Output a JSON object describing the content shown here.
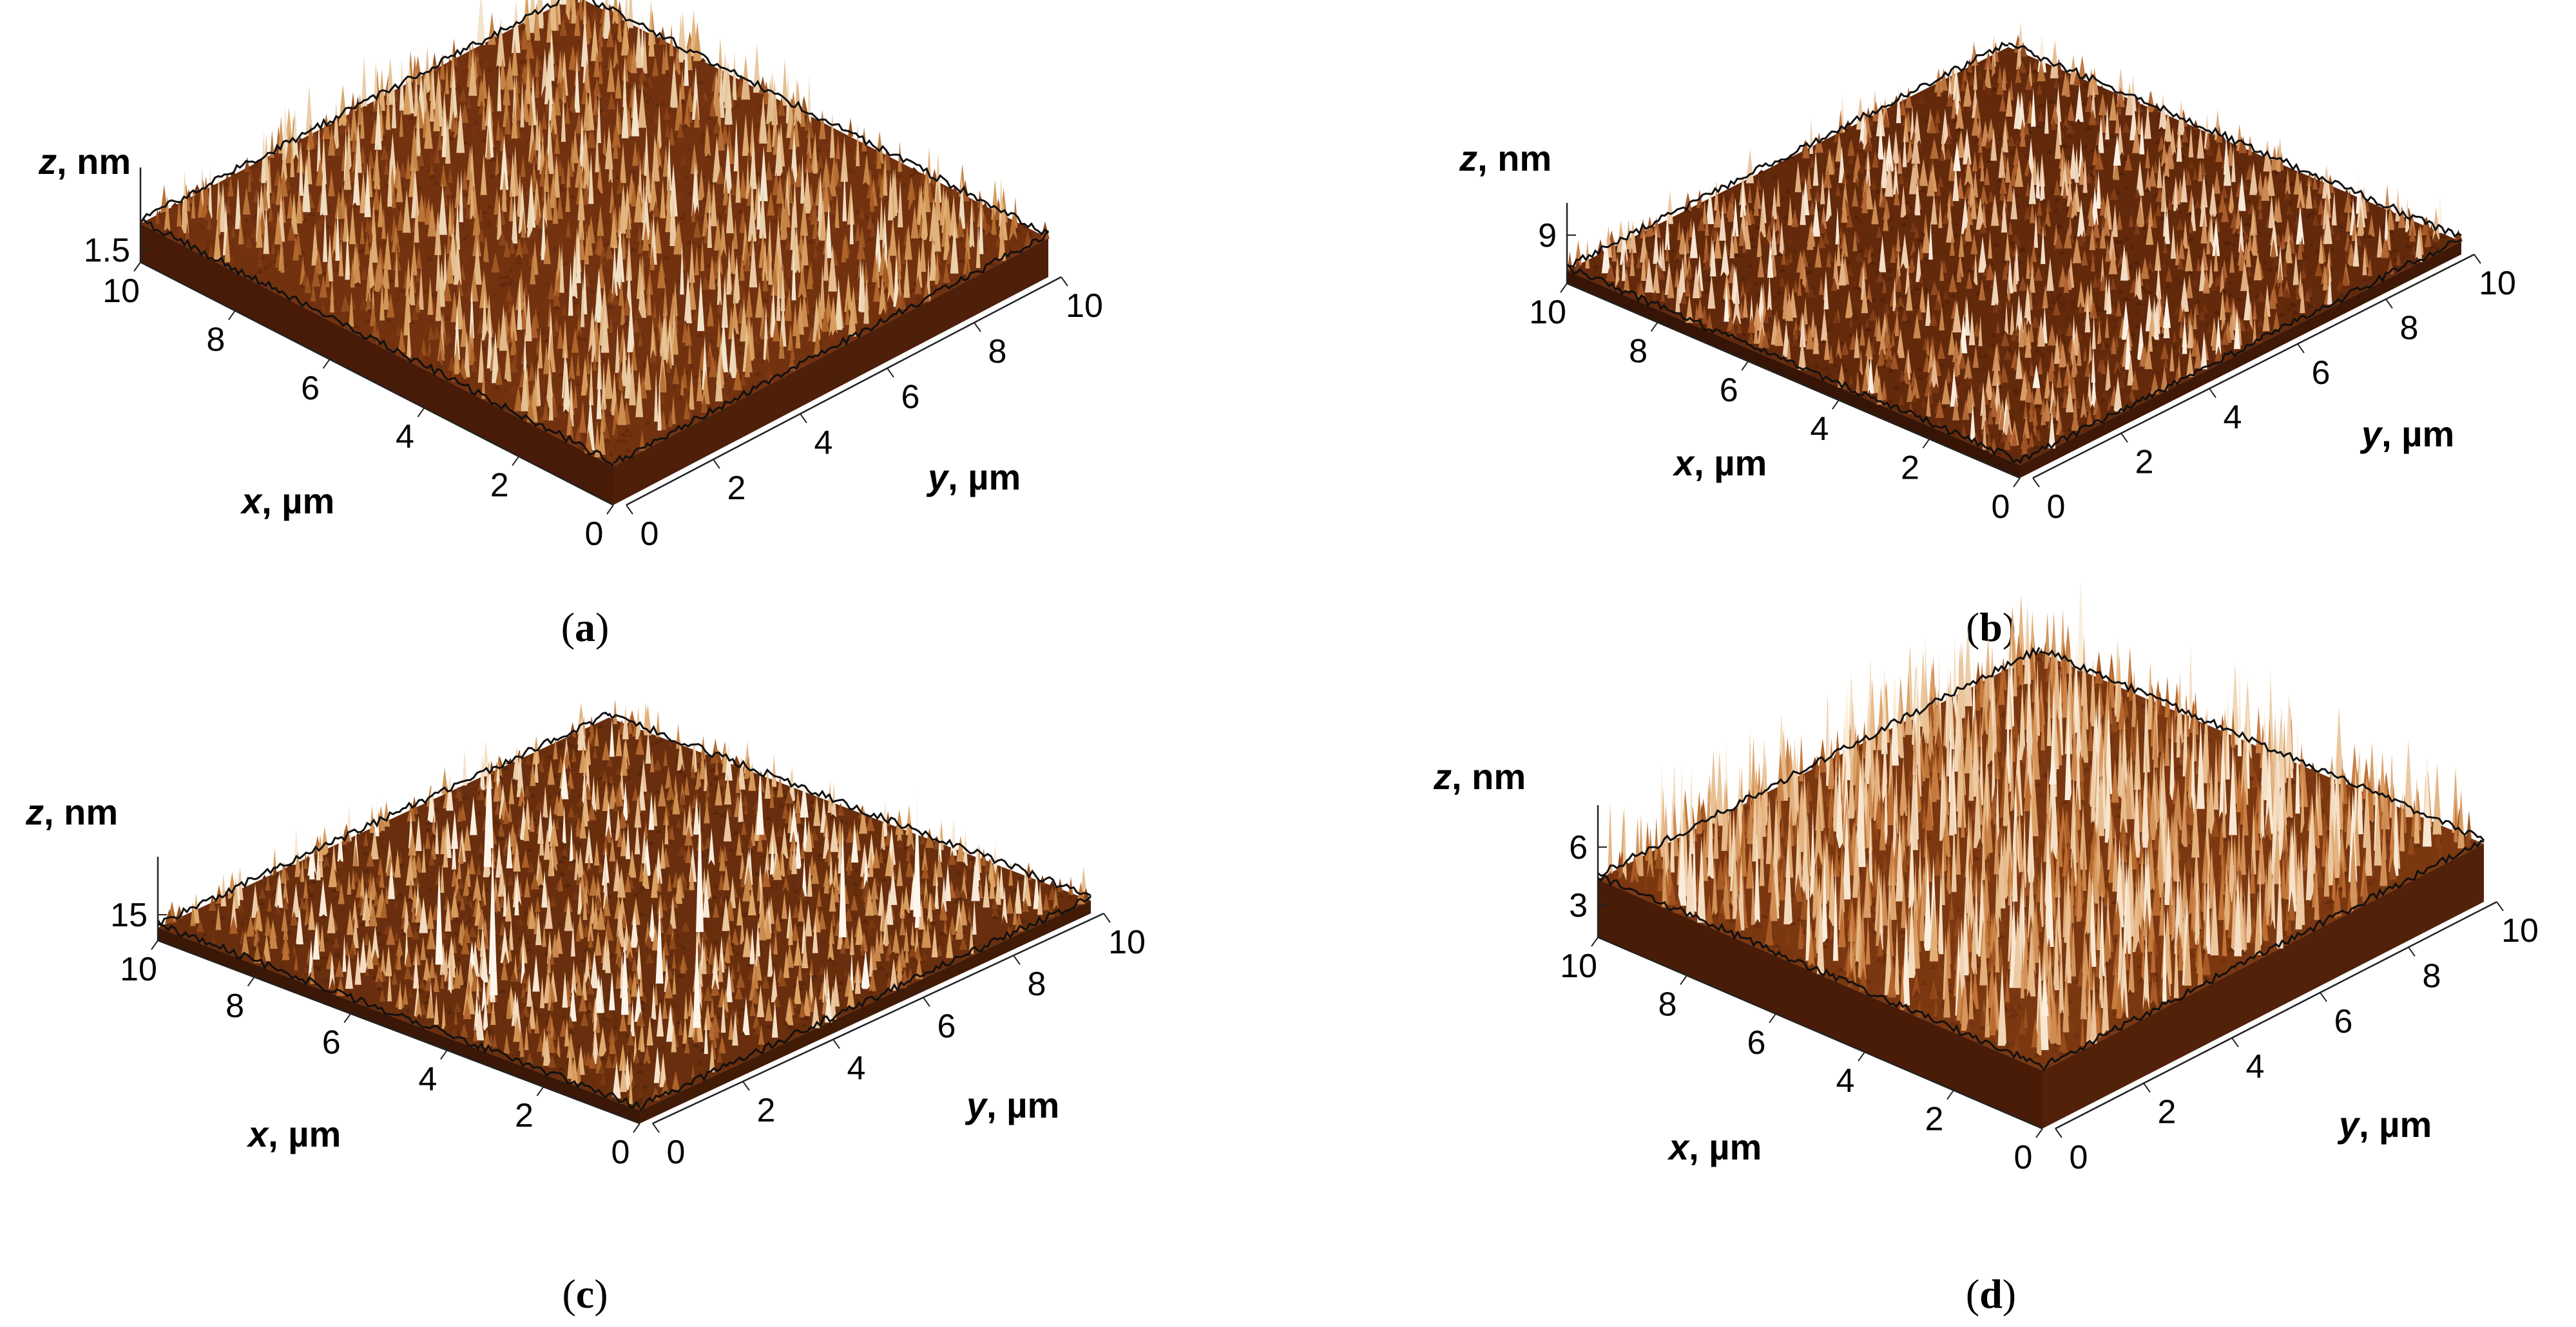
{
  "chart_data": [
    {
      "type": "surface",
      "panel_label": "a",
      "x_axis": {
        "variable": "x",
        "unit": ", µm",
        "range": [
          0,
          10
        ],
        "ticks": [
          "0",
          "2",
          "4",
          "6",
          "8",
          "10"
        ]
      },
      "y_axis": {
        "variable": "y",
        "unit": ", µm",
        "range": [
          0,
          10
        ],
        "ticks": [
          "0",
          "2",
          "4",
          "6",
          "8",
          "10"
        ]
      },
      "z_axis": {
        "variable": "z",
        "unit": ", nm",
        "ticks": [
          "1.5"
        ]
      },
      "colormap": [
        "#3a1405",
        "#7a3510",
        "#b0652a",
        "#d9a060",
        "#f3e6cf"
      ],
      "texture": "fine, moderately dense peaks"
    },
    {
      "type": "surface",
      "panel_label": "b",
      "x_axis": {
        "variable": "x",
        "unit": ", µm",
        "range": [
          0,
          10
        ],
        "ticks": [
          "0",
          "2",
          "4",
          "6",
          "8",
          "10"
        ]
      },
      "y_axis": {
        "variable": "y",
        "unit": ", µm",
        "range": [
          0,
          10
        ],
        "ticks": [
          "0",
          "2",
          "4",
          "6",
          "8",
          "10"
        ]
      },
      "z_axis": {
        "variable": "z",
        "unit": ", nm",
        "ticks": [
          "9"
        ]
      },
      "colormap": [
        "#2a0f04",
        "#6b2c0c",
        "#a85a28",
        "#d99b62",
        "#fbf2e6"
      ],
      "texture": "very flat, fine grain"
    },
    {
      "type": "surface",
      "panel_label": "c",
      "x_axis": {
        "variable": "x",
        "unit": ", µm",
        "range": [
          0,
          10
        ],
        "ticks": [
          "0",
          "2",
          "4",
          "6",
          "8",
          "10"
        ]
      },
      "y_axis": {
        "variable": "y",
        "unit": ", µm",
        "range": [
          0,
          10
        ],
        "ticks": [
          "0",
          "2",
          "4",
          "6",
          "8",
          "10"
        ]
      },
      "z_axis": {
        "variable": "z",
        "unit": ", nm",
        "ticks": [
          "15"
        ]
      },
      "colormap": [
        "#2c1004",
        "#71320e",
        "#ad6128",
        "#dca262",
        "#fdf6ec"
      ],
      "texture": "flat with isolated tall spikes"
    },
    {
      "type": "surface",
      "panel_label": "d",
      "x_axis": {
        "variable": "x",
        "unit": ", µm",
        "range": [
          0,
          10
        ],
        "ticks": [
          "0",
          "2",
          "4",
          "6",
          "8",
          "10"
        ]
      },
      "y_axis": {
        "variable": "y",
        "unit": ", µm",
        "range": [
          0,
          10
        ],
        "ticks": [
          "0",
          "2",
          "4",
          "6",
          "8",
          "10"
        ]
      },
      "z_axis": {
        "variable": "z",
        "unit": ", nm",
        "ticks": [
          "3",
          "6"
        ]
      },
      "colormap": [
        "#3a1405",
        "#843c12",
        "#c07032",
        "#e3b07a",
        "#fbf0e0"
      ],
      "texture": "rough, dense tall peaks"
    }
  ]
}
